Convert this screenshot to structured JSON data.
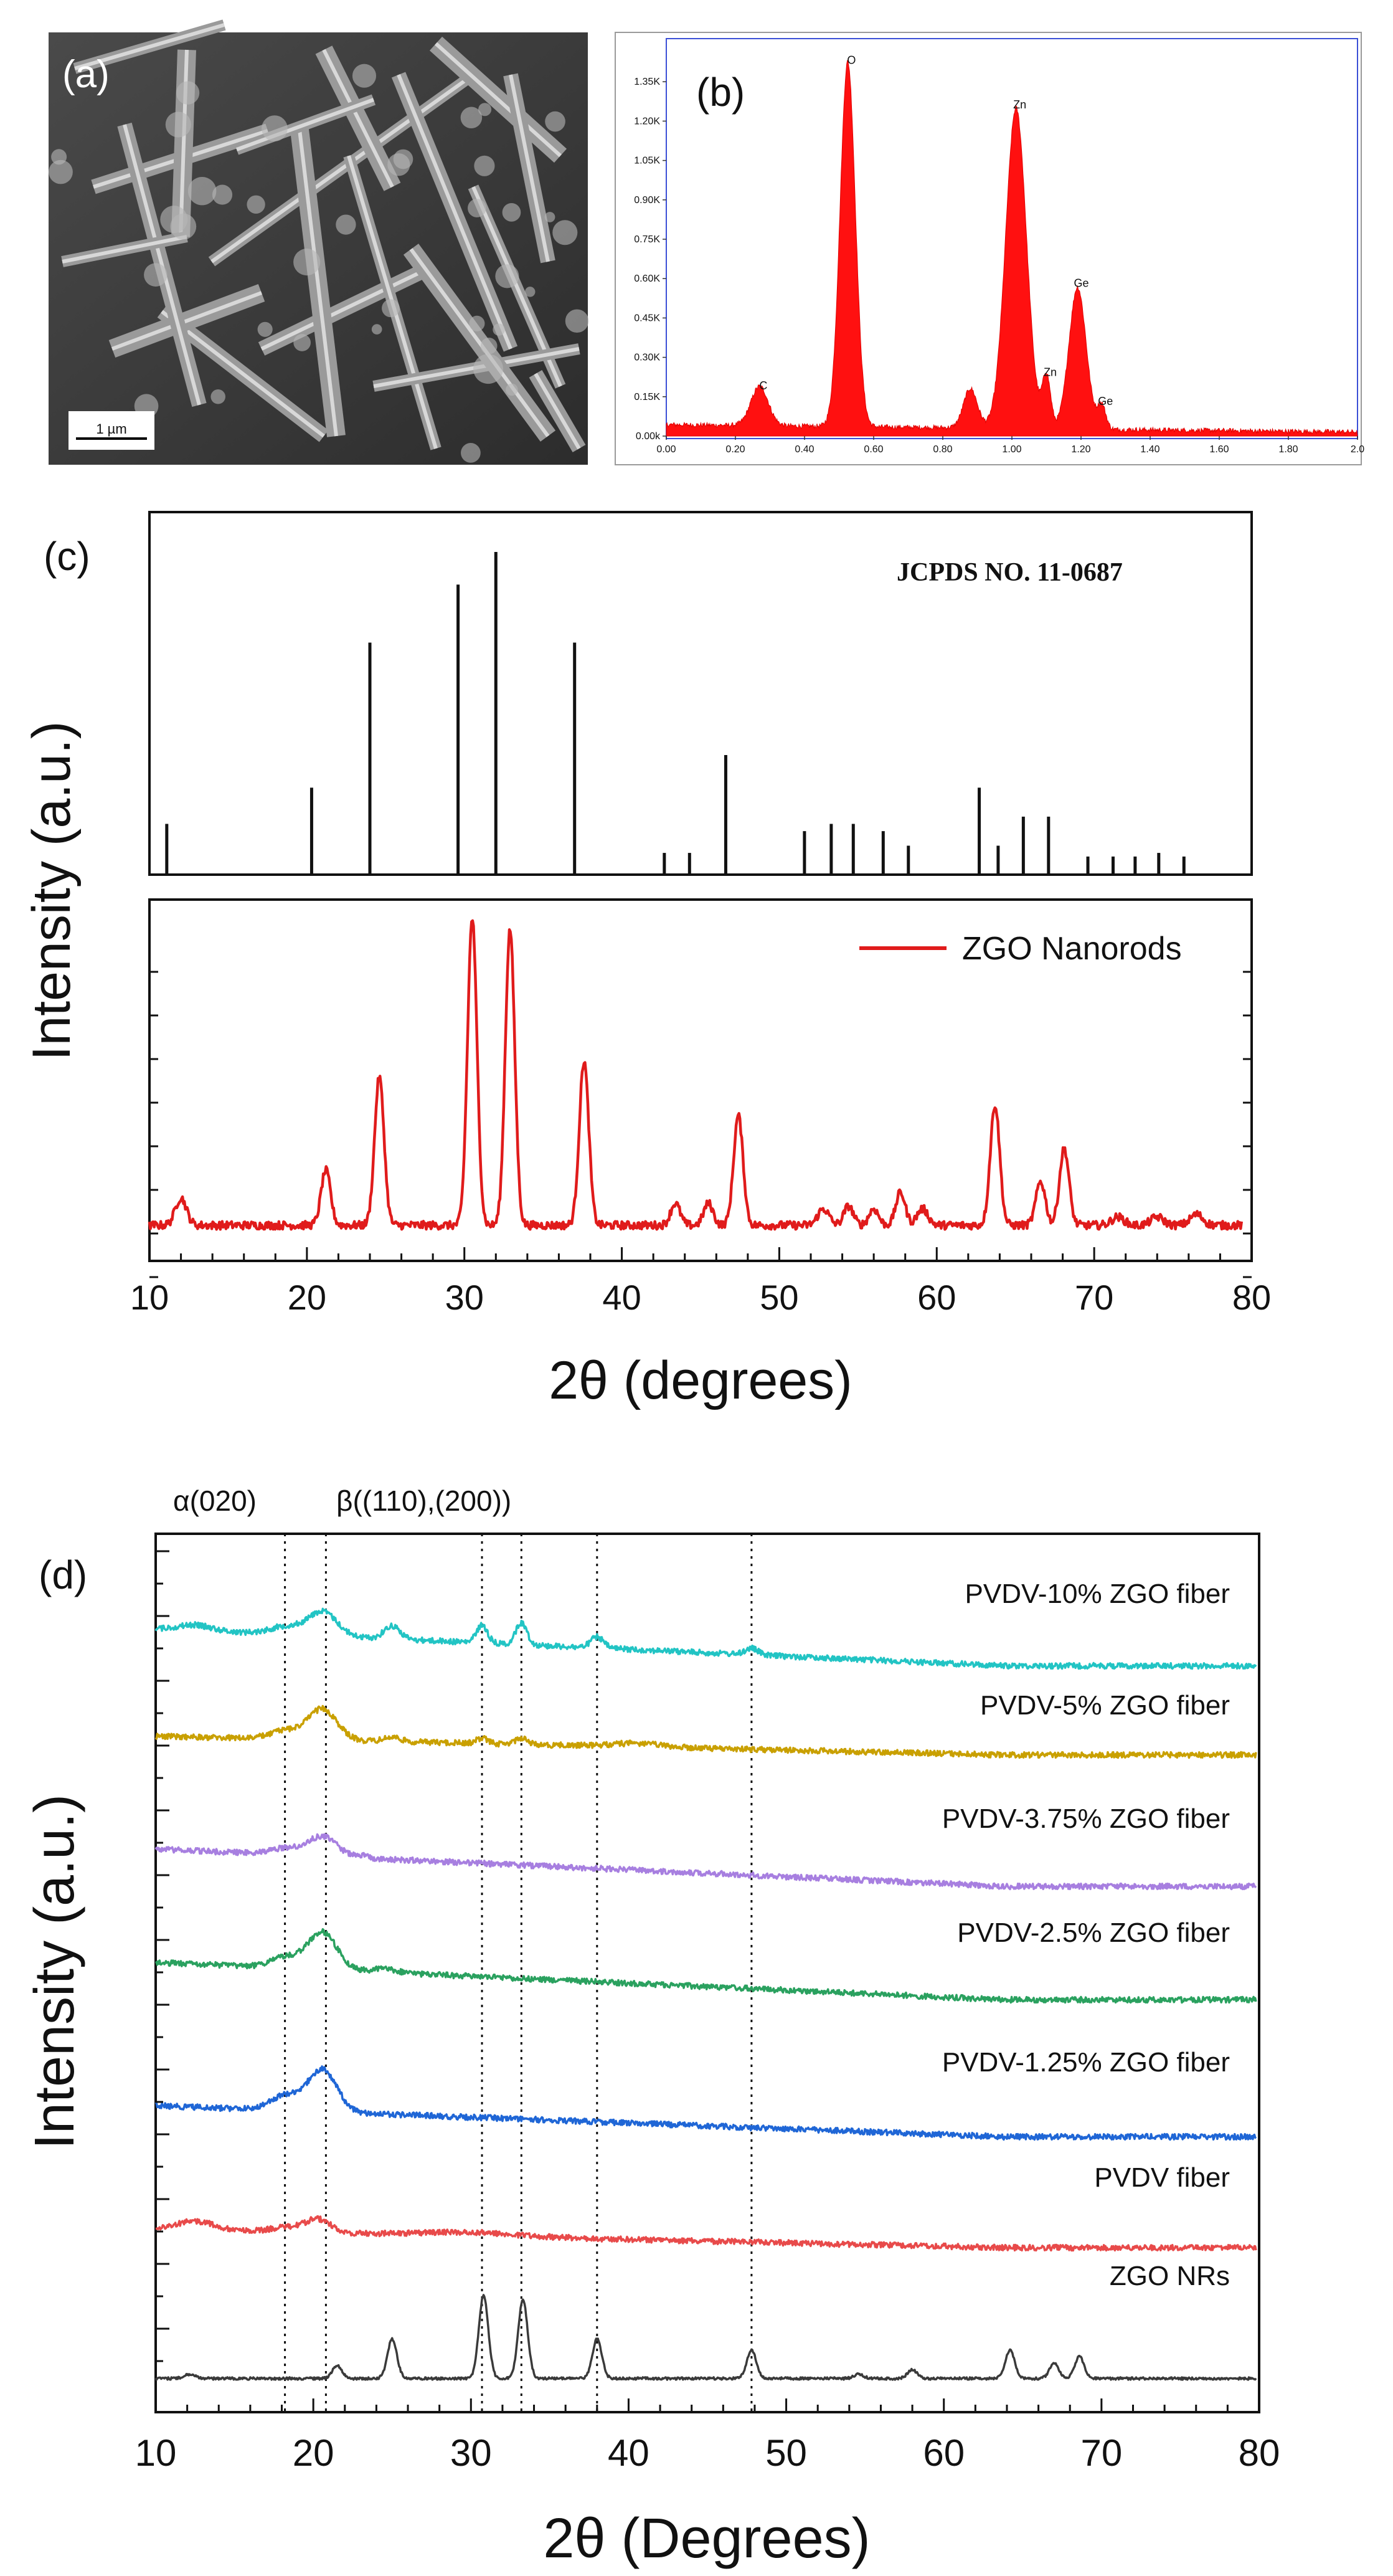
{
  "panels": {
    "a": {
      "label": "(a)",
      "scale_bar": "1 µm"
    },
    "b": {
      "label": "(b)",
      "chart_data": {
        "type": "area",
        "title": "",
        "xlabel": "",
        "ylabel": "",
        "xlim": [
          0.0,
          2.0
        ],
        "ylim": [
          0,
          1500
        ],
        "x_ticks": [
          "0.00",
          "0.20",
          "0.40",
          "0.60",
          "0.80",
          "1.00",
          "1.20",
          "1.40",
          "1.60",
          "1.80",
          "2.0"
        ],
        "y_ticks": [
          "0.00k",
          "0.15K",
          "0.30K",
          "0.45K",
          "0.60K",
          "0.75K",
          "0.90K",
          "1.05K",
          "1.20K",
          "1.35K"
        ],
        "peaks": [
          {
            "label": "C",
            "x": 0.27,
            "y": 150,
            "w": 0.025
          },
          {
            "label": "O",
            "x": 0.525,
            "y": 1390,
            "w": 0.022
          },
          {
            "label": "Zn",
            "x": 1.012,
            "y": 1220,
            "w": 0.03
          },
          {
            "label": "Zn",
            "x": 1.1,
            "y": 200,
            "w": 0.012
          },
          {
            "label": "Ge",
            "x": 1.19,
            "y": 540,
            "w": 0.025
          },
          {
            "label": "Ge",
            "x": 1.26,
            "y": 90,
            "w": 0.012
          }
        ],
        "shoulders": [
          {
            "x": 0.88,
            "y": 150,
            "w": 0.02
          }
        ],
        "baseline": 35
      }
    },
    "c": {
      "label": "(c)",
      "chart_data": {
        "type": "line",
        "xlabel": "2θ (degrees)",
        "ylabel": "Intensity (a.u.)",
        "xlim": [
          10,
          80
        ],
        "x_ticks": [
          10,
          20,
          30,
          40,
          50,
          60,
          70,
          80
        ],
        "reference": {
          "name": "JCPDS NO. 11-0687",
          "lines": [
            {
              "x": 11.1,
              "i": 14
            },
            {
              "x": 20.3,
              "i": 24
            },
            {
              "x": 24.0,
              "i": 64
            },
            {
              "x": 29.6,
              "i": 80
            },
            {
              "x": 32.0,
              "i": 89
            },
            {
              "x": 37.0,
              "i": 64
            },
            {
              "x": 42.7,
              "i": 6
            },
            {
              "x": 44.3,
              "i": 6
            },
            {
              "x": 46.6,
              "i": 33
            },
            {
              "x": 51.6,
              "i": 12
            },
            {
              "x": 53.3,
              "i": 14
            },
            {
              "x": 54.7,
              "i": 14
            },
            {
              "x": 56.6,
              "i": 12
            },
            {
              "x": 58.2,
              "i": 8
            },
            {
              "x": 62.7,
              "i": 24
            },
            {
              "x": 63.9,
              "i": 8
            },
            {
              "x": 65.5,
              "i": 16
            },
            {
              "x": 67.1,
              "i": 16
            },
            {
              "x": 69.6,
              "i": 5
            },
            {
              "x": 71.2,
              "i": 5
            },
            {
              "x": 72.6,
              "i": 5
            },
            {
              "x": 74.1,
              "i": 6
            },
            {
              "x": 75.7,
              "i": 5
            }
          ]
        },
        "series": [
          {
            "name": "ZGO Nanorods",
            "color": "#e01b1b",
            "baseline": 8,
            "peaks": [
              {
                "x": 12.0,
                "h": 10,
                "w": 0.35
              },
              {
                "x": 21.2,
                "h": 20,
                "w": 0.3
              },
              {
                "x": 24.6,
                "h": 54,
                "w": 0.3
              },
              {
                "x": 30.5,
                "h": 112,
                "w": 0.3
              },
              {
                "x": 32.9,
                "h": 108,
                "w": 0.3
              },
              {
                "x": 37.6,
                "h": 60,
                "w": 0.3
              },
              {
                "x": 43.4,
                "h": 8,
                "w": 0.3
              },
              {
                "x": 45.5,
                "h": 8,
                "w": 0.3
              },
              {
                "x": 47.4,
                "h": 40,
                "w": 0.3
              },
              {
                "x": 52.8,
                "h": 6,
                "w": 0.35
              },
              {
                "x": 54.4,
                "h": 7,
                "w": 0.3
              },
              {
                "x": 56.0,
                "h": 6,
                "w": 0.3
              },
              {
                "x": 57.7,
                "h": 12,
                "w": 0.3
              },
              {
                "x": 59.1,
                "h": 6,
                "w": 0.35
              },
              {
                "x": 63.7,
                "h": 44,
                "w": 0.3
              },
              {
                "x": 66.6,
                "h": 16,
                "w": 0.3
              },
              {
                "x": 68.1,
                "h": 28,
                "w": 0.3
              },
              {
                "x": 71.5,
                "h": 3,
                "w": 0.4
              },
              {
                "x": 74.0,
                "h": 3,
                "w": 0.4
              },
              {
                "x": 76.5,
                "h": 4,
                "w": 0.4
              }
            ]
          }
        ]
      }
    },
    "d": {
      "label": "(d)",
      "chart_data": {
        "type": "line",
        "xlabel": "2θ (Degrees)",
        "ylabel": "Intensity (a.u.)",
        "xlim": [
          10,
          80
        ],
        "x_ticks": [
          10,
          20,
          30,
          40,
          50,
          60,
          70,
          80
        ],
        "annotations": [
          "α(020)",
          "β((110),(200))"
        ],
        "dotted_lines_x": [
          18.2,
          20.8,
          30.7,
          33.2,
          38.0,
          47.8
        ],
        "series": [
          {
            "name": "PVDV-10% ZGO fiber",
            "color": "#22c4c4",
            "offset": 6,
            "amp": 0.55,
            "peaks": [
              {
                "x": 12.5,
                "h": 0.12,
                "w": 1.0
              },
              {
                "x": 18.3,
                "h": 0.18,
                "w": 1.0
              },
              {
                "x": 20.6,
                "h": 0.55,
                "w": 0.9
              },
              {
                "x": 25.0,
                "h": 0.3,
                "w": 0.5
              },
              {
                "x": 30.7,
                "h": 0.4,
                "w": 0.35
              },
              {
                "x": 33.2,
                "h": 0.5,
                "w": 0.35
              },
              {
                "x": 38.0,
                "h": 0.25,
                "w": 0.4
              },
              {
                "x": 47.8,
                "h": 0.15,
                "w": 0.4
              }
            ]
          },
          {
            "name": "PVDV-5% ZGO fiber",
            "color": "#c9a000",
            "offset": 5,
            "amp": 0.55,
            "peaks": [
              {
                "x": 18.3,
                "h": 0.2,
                "w": 1.0
              },
              {
                "x": 20.6,
                "h": 0.7,
                "w": 0.9
              },
              {
                "x": 25.0,
                "h": 0.1,
                "w": 0.5
              },
              {
                "x": 30.7,
                "h": 0.12,
                "w": 0.35
              },
              {
                "x": 33.2,
                "h": 0.15,
                "w": 0.35
              },
              {
                "x": 40.5,
                "h": 0.08,
                "w": 1.5
              }
            ]
          },
          {
            "name": "PVDV-3.75% ZGO fiber",
            "color": "#a77fe0",
            "offset": 4,
            "amp": 0.55,
            "peaks": [
              {
                "x": 18.3,
                "h": 0.15,
                "w": 1.0
              },
              {
                "x": 20.6,
                "h": 0.45,
                "w": 0.9
              },
              {
                "x": 23.0,
                "h": 0.05,
                "w": 0.5
              }
            ]
          },
          {
            "name": "PVDV-2.5% ZGO fiber",
            "color": "#2aa15f",
            "offset": 3,
            "amp": 0.55,
            "peaks": [
              {
                "x": 18.3,
                "h": 0.25,
                "w": 1.0
              },
              {
                "x": 20.6,
                "h": 0.85,
                "w": 0.9
              },
              {
                "x": 24.5,
                "h": 0.08,
                "w": 0.8
              }
            ]
          },
          {
            "name": "PVDV-1.25% ZGO fiber",
            "color": "#1f66d6",
            "offset": 2,
            "amp": 0.55,
            "peaks": [
              {
                "x": 18.3,
                "h": 0.35,
                "w": 1.0
              },
              {
                "x": 20.6,
                "h": 0.95,
                "w": 0.9
              }
            ]
          },
          {
            "name": "PVDV fiber",
            "color": "#e84a4a",
            "offset": 1,
            "amp": 0.55,
            "peaks": [
              {
                "x": 12.5,
                "h": 0.2,
                "w": 1.2
              },
              {
                "x": 18.3,
                "h": 0.1,
                "w": 1.0
              },
              {
                "x": 20.3,
                "h": 0.3,
                "w": 0.8
              },
              {
                "x": 30.0,
                "h": 0.08,
                "w": 3.0
              }
            ]
          },
          {
            "name": "ZGO NRs",
            "color": "#3a3a3a",
            "offset": 0,
            "amp": 0.55,
            "peaks": [
              {
                "x": 12.2,
                "h": 0.1,
                "w": 0.35
              },
              {
                "x": 21.5,
                "h": 0.3,
                "w": 0.3
              },
              {
                "x": 25.0,
                "h": 0.9,
                "w": 0.3
              },
              {
                "x": 30.8,
                "h": 1.9,
                "w": 0.3
              },
              {
                "x": 33.3,
                "h": 1.8,
                "w": 0.3
              },
              {
                "x": 38.0,
                "h": 0.9,
                "w": 0.3
              },
              {
                "x": 47.8,
                "h": 0.65,
                "w": 0.3
              },
              {
                "x": 58.0,
                "h": 0.2,
                "w": 0.3
              },
              {
                "x": 64.2,
                "h": 0.65,
                "w": 0.3
              },
              {
                "x": 67.0,
                "h": 0.35,
                "w": 0.3
              },
              {
                "x": 68.6,
                "h": 0.5,
                "w": 0.3
              },
              {
                "x": 54.6,
                "h": 0.1,
                "w": 0.3
              }
            ]
          }
        ]
      }
    }
  }
}
